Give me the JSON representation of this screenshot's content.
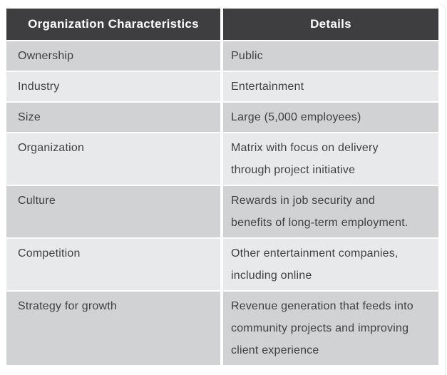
{
  "theme": {
    "header_bg": "#3e3e40",
    "header_text": "#ffffff",
    "row_dark": "#d1d2d3",
    "row_light": "#e8e9ea",
    "body_text": "#3f4043",
    "divider": "#ffffff"
  },
  "table": {
    "columns": [
      {
        "label": "Organization Characteristics"
      },
      {
        "label": "Details"
      }
    ],
    "rows": [
      {
        "characteristic": "Ownership",
        "detail": "Public"
      },
      {
        "characteristic": "Industry",
        "detail": "Entertainment"
      },
      {
        "characteristic": "Size",
        "detail": "Large (5,000 employees)"
      },
      {
        "characteristic": "Organization",
        "detail": "Matrix with focus on delivery\nthrough project initiative"
      },
      {
        "characteristic": "Culture",
        "detail": "Rewards in job security and\nbenefits of long-term employment."
      },
      {
        "characteristic": "Competition",
        "detail": "Other entertainment companies,\nincluding online"
      },
      {
        "characteristic": "Strategy for growth",
        "detail": "Revenue generation that feeds into\ncommunity projects and improving\nclient experience"
      }
    ]
  }
}
